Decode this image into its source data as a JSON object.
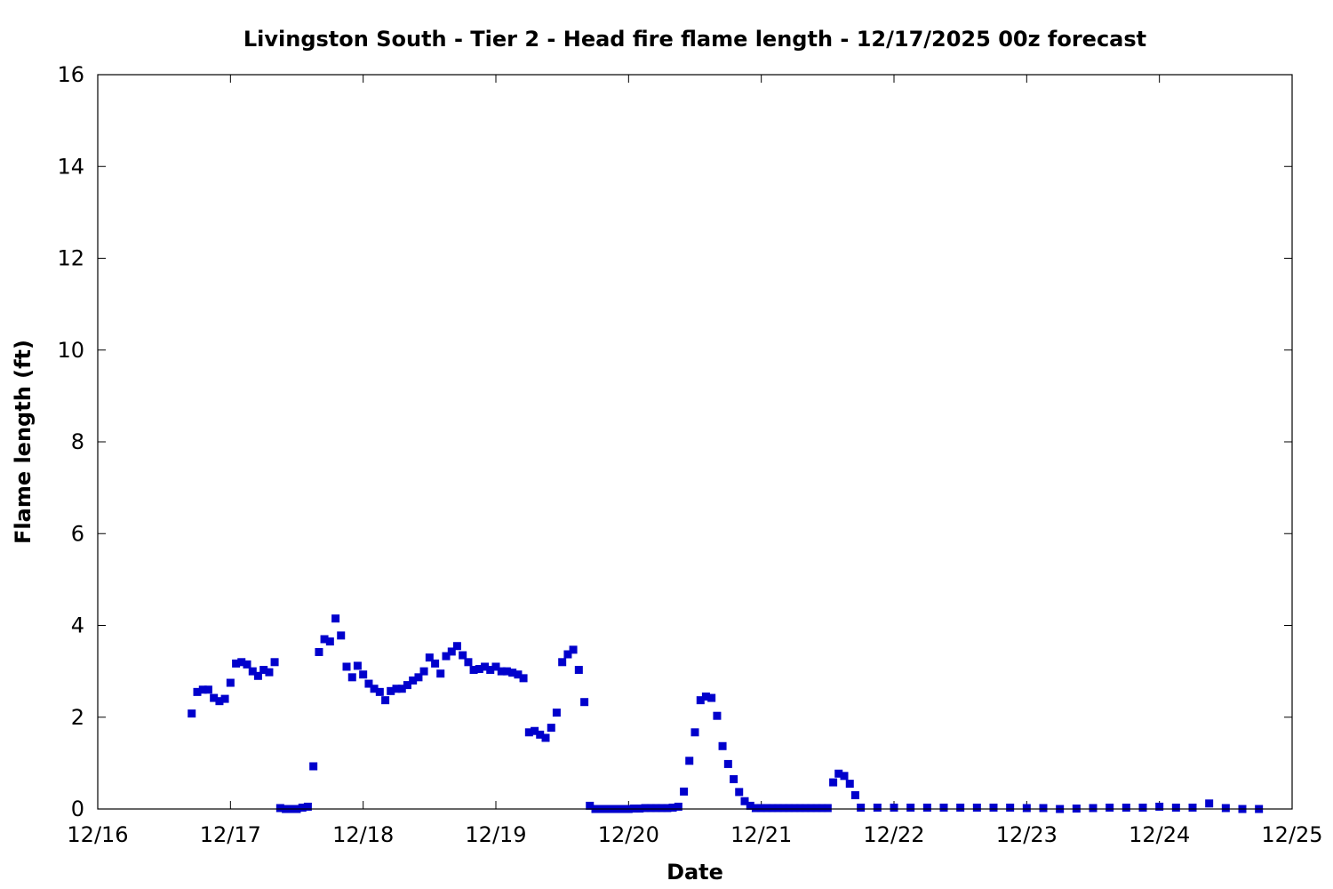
{
  "chart_data": {
    "type": "scatter",
    "title": "Livingston South - Tier 2 - Head fire flame length - 12/17/2025 00z forecast",
    "xlabel": "Date",
    "ylabel": "Flame length (ft)",
    "x_axis": {
      "unit": "days",
      "range": [
        0,
        9
      ],
      "ticks": [
        0,
        1,
        2,
        3,
        4,
        5,
        6,
        7,
        8,
        9
      ],
      "tick_labels": [
        "12/16",
        "12/17",
        "12/18",
        "12/19",
        "12/20",
        "12/21",
        "12/22",
        "12/23",
        "12/24",
        "12/25"
      ]
    },
    "y_axis": {
      "range": [
        0,
        16
      ],
      "ticks": [
        0,
        2,
        4,
        6,
        8,
        10,
        12,
        14,
        16
      ],
      "tick_labels": [
        "0",
        "2",
        "4",
        "6",
        "8",
        "10",
        "12",
        "14",
        "16"
      ]
    },
    "grid": false,
    "legend": "none",
    "series": [
      {
        "color": "#0000cc",
        "marker": "square",
        "points": [
          [
            0.708,
            2.08
          ],
          [
            0.75,
            2.55
          ],
          [
            0.792,
            2.6
          ],
          [
            0.833,
            2.6
          ],
          [
            0.875,
            2.42
          ],
          [
            0.917,
            2.35
          ],
          [
            0.958,
            2.4
          ],
          [
            1.0,
            2.75
          ],
          [
            1.042,
            3.17
          ],
          [
            1.083,
            3.2
          ],
          [
            1.125,
            3.15
          ],
          [
            1.167,
            3.0
          ],
          [
            1.208,
            2.9
          ],
          [
            1.25,
            3.03
          ],
          [
            1.292,
            2.98
          ],
          [
            1.333,
            3.2
          ],
          [
            1.375,
            0.02
          ],
          [
            1.417,
            0.0
          ],
          [
            1.458,
            0.0
          ],
          [
            1.5,
            0.0
          ],
          [
            1.542,
            0.03
          ],
          [
            1.583,
            0.05
          ],
          [
            1.625,
            0.93
          ],
          [
            1.667,
            3.42
          ],
          [
            1.708,
            3.7
          ],
          [
            1.75,
            3.65
          ],
          [
            1.792,
            4.15
          ],
          [
            1.833,
            3.78
          ],
          [
            1.875,
            3.1
          ],
          [
            1.917,
            2.87
          ],
          [
            1.958,
            3.12
          ],
          [
            2.0,
            2.93
          ],
          [
            2.042,
            2.73
          ],
          [
            2.083,
            2.62
          ],
          [
            2.125,
            2.55
          ],
          [
            2.167,
            2.37
          ],
          [
            2.208,
            2.57
          ],
          [
            2.25,
            2.62
          ],
          [
            2.292,
            2.62
          ],
          [
            2.333,
            2.7
          ],
          [
            2.375,
            2.8
          ],
          [
            2.417,
            2.87
          ],
          [
            2.458,
            3.0
          ],
          [
            2.5,
            3.3
          ],
          [
            2.542,
            3.17
          ],
          [
            2.583,
            2.95
          ],
          [
            2.625,
            3.33
          ],
          [
            2.667,
            3.43
          ],
          [
            2.708,
            3.55
          ],
          [
            2.75,
            3.35
          ],
          [
            2.792,
            3.2
          ],
          [
            2.833,
            3.03
          ],
          [
            2.875,
            3.05
          ],
          [
            2.917,
            3.1
          ],
          [
            2.958,
            3.03
          ],
          [
            3.0,
            3.1
          ],
          [
            3.042,
            3.0
          ],
          [
            3.083,
            3.0
          ],
          [
            3.125,
            2.97
          ],
          [
            3.167,
            2.93
          ],
          [
            3.208,
            2.85
          ],
          [
            3.25,
            1.67
          ],
          [
            3.292,
            1.7
          ],
          [
            3.333,
            1.62
          ],
          [
            3.375,
            1.55
          ],
          [
            3.417,
            1.77
          ],
          [
            3.458,
            2.1
          ],
          [
            3.5,
            3.2
          ],
          [
            3.542,
            3.37
          ],
          [
            3.583,
            3.47
          ],
          [
            3.625,
            3.03
          ],
          [
            3.667,
            2.33
          ],
          [
            3.708,
            0.07
          ],
          [
            3.75,
            0.0
          ],
          [
            3.792,
            0.0
          ],
          [
            3.833,
            0.0
          ],
          [
            3.875,
            0.0
          ],
          [
            3.917,
            0.0
          ],
          [
            3.958,
            0.0
          ],
          [
            4.0,
            0.0
          ],
          [
            4.042,
            0.01
          ],
          [
            4.083,
            0.01
          ],
          [
            4.125,
            0.02
          ],
          [
            4.167,
            0.02
          ],
          [
            4.208,
            0.02
          ],
          [
            4.25,
            0.02
          ],
          [
            4.292,
            0.02
          ],
          [
            4.333,
            0.03
          ],
          [
            4.375,
            0.05
          ],
          [
            4.417,
            0.38
          ],
          [
            4.458,
            1.05
          ],
          [
            4.5,
            1.67
          ],
          [
            4.542,
            2.37
          ],
          [
            4.583,
            2.45
          ],
          [
            4.625,
            2.42
          ],
          [
            4.667,
            2.03
          ],
          [
            4.708,
            1.37
          ],
          [
            4.75,
            0.98
          ],
          [
            4.792,
            0.65
          ],
          [
            4.833,
            0.37
          ],
          [
            4.875,
            0.17
          ],
          [
            4.917,
            0.07
          ],
          [
            4.958,
            0.02
          ],
          [
            5.0,
            0.02
          ],
          [
            5.042,
            0.02
          ],
          [
            5.083,
            0.02
          ],
          [
            5.125,
            0.02
          ],
          [
            5.167,
            0.02
          ],
          [
            5.208,
            0.02
          ],
          [
            5.25,
            0.02
          ],
          [
            5.292,
            0.02
          ],
          [
            5.333,
            0.02
          ],
          [
            5.375,
            0.02
          ],
          [
            5.417,
            0.02
          ],
          [
            5.458,
            0.02
          ],
          [
            5.5,
            0.02
          ],
          [
            5.542,
            0.58
          ],
          [
            5.583,
            0.77
          ],
          [
            5.625,
            0.72
          ],
          [
            5.667,
            0.55
          ],
          [
            5.708,
            0.3
          ],
          [
            5.75,
            0.03
          ],
          [
            5.875,
            0.03
          ],
          [
            6.0,
            0.03
          ],
          [
            6.125,
            0.03
          ],
          [
            6.25,
            0.03
          ],
          [
            6.375,
            0.03
          ],
          [
            6.5,
            0.03
          ],
          [
            6.625,
            0.03
          ],
          [
            6.75,
            0.03
          ],
          [
            6.875,
            0.03
          ],
          [
            7.0,
            0.02
          ],
          [
            7.125,
            0.02
          ],
          [
            7.25,
            0.0
          ],
          [
            7.375,
            0.01
          ],
          [
            7.5,
            0.02
          ],
          [
            7.625,
            0.03
          ],
          [
            7.75,
            0.03
          ],
          [
            7.875,
            0.03
          ],
          [
            8.0,
            0.05
          ],
          [
            8.125,
            0.03
          ],
          [
            8.25,
            0.03
          ],
          [
            8.375,
            0.12
          ],
          [
            8.5,
            0.02
          ],
          [
            8.625,
            0.0
          ],
          [
            8.75,
            0.0
          ]
        ]
      }
    ]
  }
}
